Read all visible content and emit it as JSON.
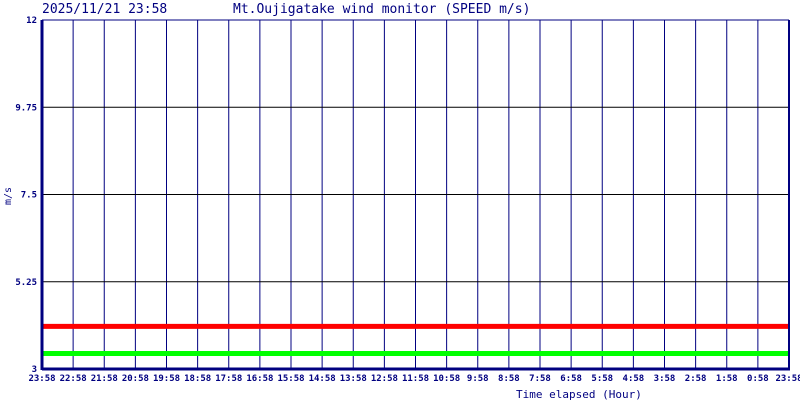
{
  "chart_data": {
    "type": "line",
    "timestamp": "2025/11/21 23:58",
    "title": "Mt.Oujigatake wind monitor (SPEED m/s)",
    "xlabel": "Time elapsed (Hour)",
    "ylabel": "m/s",
    "ylim": [
      3,
      12
    ],
    "yticks": [
      "3",
      "5.25",
      "7.5",
      "9.75",
      "12"
    ],
    "categories": [
      "23:58",
      "22:58",
      "21:58",
      "20:58",
      "19:58",
      "18:58",
      "17:58",
      "16:58",
      "15:58",
      "14:58",
      "13:58",
      "12:58",
      "11:58",
      "10:58",
      "9:58",
      "8:58",
      "7:58",
      "6:58",
      "5:58",
      "4:58",
      "3:58",
      "2:58",
      "1:58",
      "0:58",
      "23:58"
    ],
    "grid": true,
    "series": [
      {
        "color": "#ff0000",
        "values": [
          4.1,
          4.1,
          4.1,
          4.1,
          4.1,
          4.1,
          4.1,
          4.1,
          4.1,
          4.1,
          4.1,
          4.1,
          4.1,
          4.1,
          4.1,
          4.1,
          4.1,
          4.1,
          4.1,
          4.1,
          4.1,
          4.1,
          4.1,
          4.1,
          4.1
        ]
      },
      {
        "color": "#00ff00",
        "values": [
          3.4,
          3.4,
          3.4,
          3.4,
          3.4,
          3.4,
          3.4,
          3.4,
          3.4,
          3.4,
          3.4,
          3.4,
          3.4,
          3.4,
          3.4,
          3.4,
          3.4,
          3.4,
          3.4,
          3.4,
          3.4,
          3.4,
          3.4,
          3.4,
          3.4
        ]
      }
    ]
  }
}
